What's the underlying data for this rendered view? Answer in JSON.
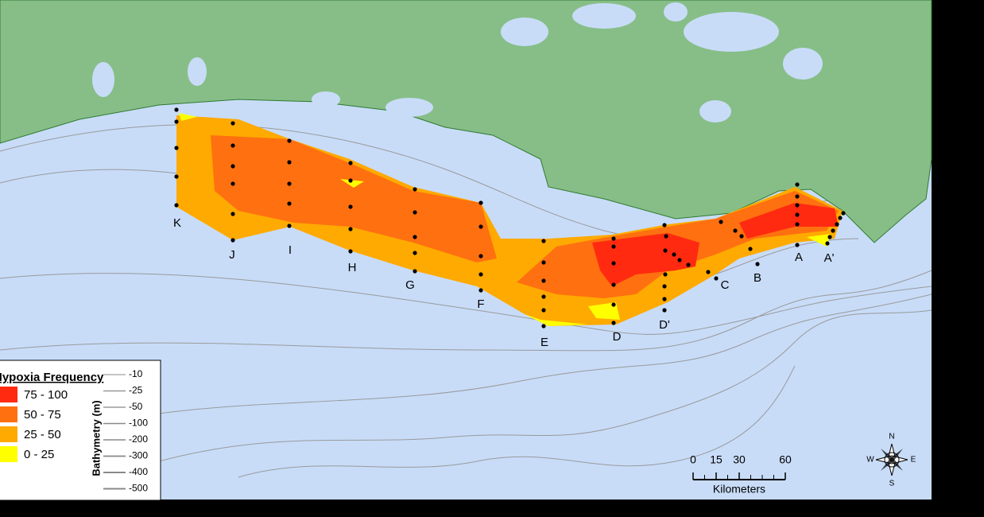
{
  "map": {
    "transects": [
      "K",
      "J",
      "I",
      "H",
      "G",
      "F",
      "E",
      "D",
      "D'",
      "C",
      "B",
      "A",
      "A'"
    ],
    "legend": {
      "title": "Hypoxia Frequency",
      "items": [
        {
          "label": "75 - 100",
          "color": "#ff2a10"
        },
        {
          "label": "50 - 75",
          "color": "#ff7010"
        },
        {
          "label": "25 - 50",
          "color": "#ffaa00"
        },
        {
          "label": "0 - 25",
          "color": "#ffff00"
        }
      ]
    },
    "bathymetry": {
      "title": "Bathymetry (m)",
      "depths": [
        -10,
        -25,
        -50,
        -100,
        -200,
        -300,
        -400,
        -500
      ]
    },
    "scale_bar": {
      "ticks": [
        0,
        15,
        30,
        60
      ],
      "unit": "Kilometers"
    },
    "compass": {
      "north": "N",
      "south": "S",
      "east": "E",
      "west": "W"
    }
  }
}
